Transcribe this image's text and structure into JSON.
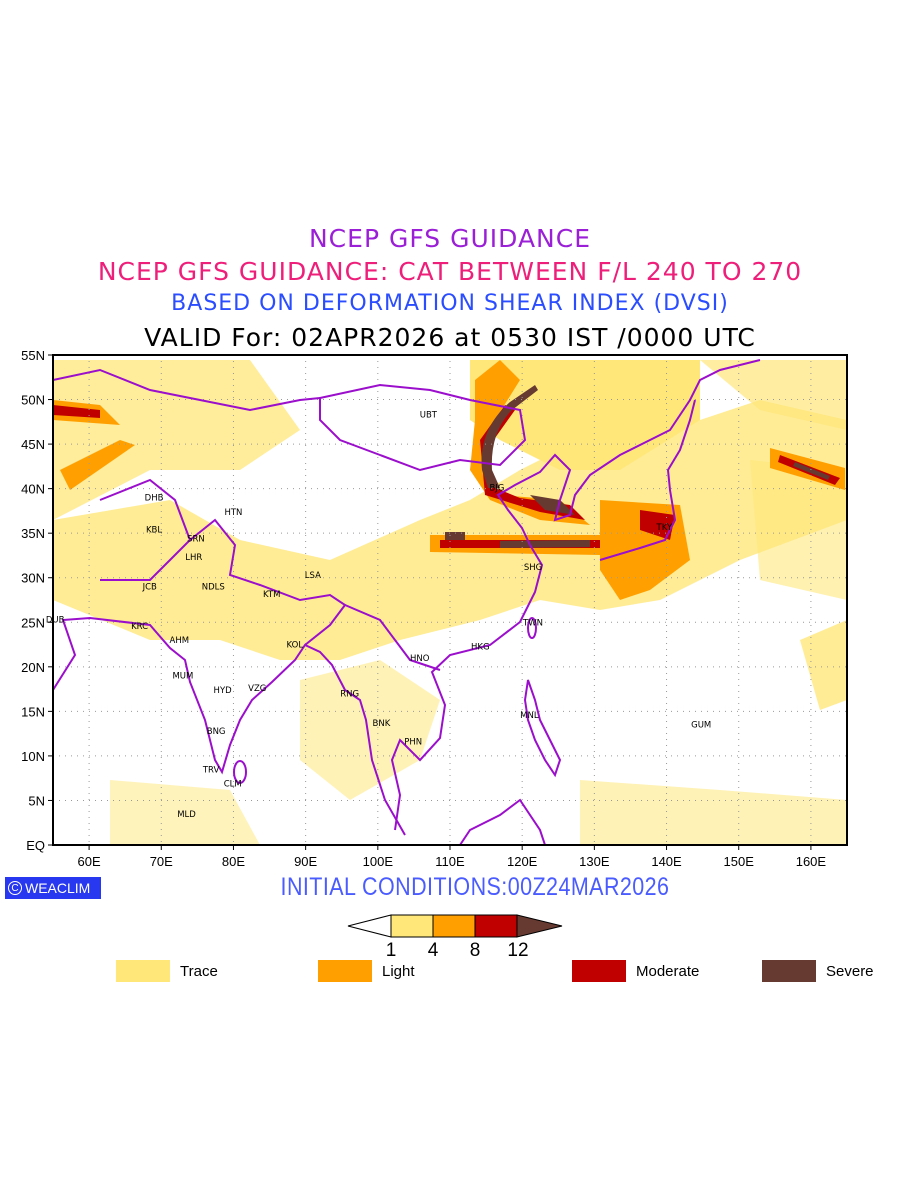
{
  "titles": {
    "line1": "NCEP GFS GUIDANCE",
    "line2": "NCEP GFS GUIDANCE: CAT BETWEEN F/L 240 TO 270",
    "line3": "BASED ON DEFORMATION SHEAR INDEX (DVSI)",
    "line4": "VALID For: 02APR2026 at 0530 IST /0000 UTC"
  },
  "initial_conditions": "INITIAL CONDITIONS:00Z24MAR2026",
  "logo": {
    "symbol": "C",
    "text": "WEACLIM"
  },
  "map": {
    "lon_range": [
      55,
      165
    ],
    "lat_range": [
      0,
      55
    ],
    "lon_ticks": [
      {
        "v": 60,
        "label": "60E"
      },
      {
        "v": 70,
        "label": "70E"
      },
      {
        "v": 80,
        "label": "80E"
      },
      {
        "v": 90,
        "label": "90E"
      },
      {
        "v": 100,
        "label": "100E"
      },
      {
        "v": 110,
        "label": "110E"
      },
      {
        "v": 120,
        "label": "120E"
      },
      {
        "v": 130,
        "label": "130E"
      },
      {
        "v": 140,
        "label": "140E"
      },
      {
        "v": 150,
        "label": "150E"
      },
      {
        "v": 160,
        "label": "160E"
      }
    ],
    "lat_ticks": [
      {
        "v": 0,
        "label": "EQ"
      },
      {
        "v": 5,
        "label": "5N"
      },
      {
        "v": 10,
        "label": "10N"
      },
      {
        "v": 15,
        "label": "15N"
      },
      {
        "v": 20,
        "label": "20N"
      },
      {
        "v": 25,
        "label": "25N"
      },
      {
        "v": 30,
        "label": "30N"
      },
      {
        "v": 35,
        "label": "35N"
      },
      {
        "v": 40,
        "label": "40N"
      },
      {
        "v": 45,
        "label": "45N"
      },
      {
        "v": 50,
        "label": "50N"
      },
      {
        "v": 55,
        "label": "55N"
      }
    ],
    "grid": true,
    "coast_color": "#9b0fcc",
    "stations": [
      {
        "name": "UBT",
        "lon": 107.0,
        "lat": 48.3
      },
      {
        "name": "BJG",
        "lon": 116.5,
        "lat": 40.1
      },
      {
        "name": "DHB",
        "lon": 69.0,
        "lat": 39.0
      },
      {
        "name": "HTN",
        "lon": 80.0,
        "lat": 37.4
      },
      {
        "name": "KBL",
        "lon": 69.0,
        "lat": 35.4
      },
      {
        "name": "SRN",
        "lon": 74.8,
        "lat": 34.4
      },
      {
        "name": "LHR",
        "lon": 74.5,
        "lat": 32.3
      },
      {
        "name": "JCB",
        "lon": 68.4,
        "lat": 29.0
      },
      {
        "name": "NDLS",
        "lon": 77.2,
        "lat": 29.0
      },
      {
        "name": "KTM",
        "lon": 85.3,
        "lat": 28.2
      },
      {
        "name": "LSA",
        "lon": 91.0,
        "lat": 30.3
      },
      {
        "name": "DUB",
        "lon": 55.3,
        "lat": 25.3
      },
      {
        "name": "KRC",
        "lon": 67.0,
        "lat": 24.6
      },
      {
        "name": "AHM",
        "lon": 72.5,
        "lat": 23.0
      },
      {
        "name": "KOL",
        "lon": 88.5,
        "lat": 22.5
      },
      {
        "name": "MUM",
        "lon": 73.0,
        "lat": 19.0
      },
      {
        "name": "HYD",
        "lon": 78.5,
        "lat": 17.4
      },
      {
        "name": "VZG",
        "lon": 83.3,
        "lat": 17.6
      },
      {
        "name": "BNG",
        "lon": 77.6,
        "lat": 12.8
      },
      {
        "name": "RNG",
        "lon": 96.1,
        "lat": 17.0
      },
      {
        "name": "BNK",
        "lon": 100.5,
        "lat": 13.7
      },
      {
        "name": "PHN",
        "lon": 104.9,
        "lat": 11.6
      },
      {
        "name": "HNO",
        "lon": 105.8,
        "lat": 21.0
      },
      {
        "name": "HKG",
        "lon": 114.2,
        "lat": 22.3
      },
      {
        "name": "SHG",
        "lon": 121.5,
        "lat": 31.2
      },
      {
        "name": "TWN",
        "lon": 121.5,
        "lat": 25.0
      },
      {
        "name": "MNL",
        "lon": 121.0,
        "lat": 14.6
      },
      {
        "name": "TRV",
        "lon": 76.9,
        "lat": 8.5
      },
      {
        "name": "CLM",
        "lon": 79.9,
        "lat": 6.9
      },
      {
        "name": "MLD",
        "lon": 73.5,
        "lat": 3.5
      },
      {
        "name": "TKY",
        "lon": 139.7,
        "lat": 35.7
      },
      {
        "name": "GUM",
        "lon": 144.8,
        "lat": 13.5
      }
    ]
  },
  "colorbar": {
    "levels": [
      "1",
      "4",
      "8",
      "12"
    ],
    "colors": [
      "#ffe77a",
      "#ffa000",
      "#c00000",
      "#663a30"
    ]
  },
  "legend": [
    {
      "label": "Trace",
      "color": "#ffe77a"
    },
    {
      "label": "Light",
      "color": "#ffa000"
    },
    {
      "label": "Moderate",
      "color": "#c00000"
    },
    {
      "label": "Severe",
      "color": "#663a30"
    }
  ]
}
